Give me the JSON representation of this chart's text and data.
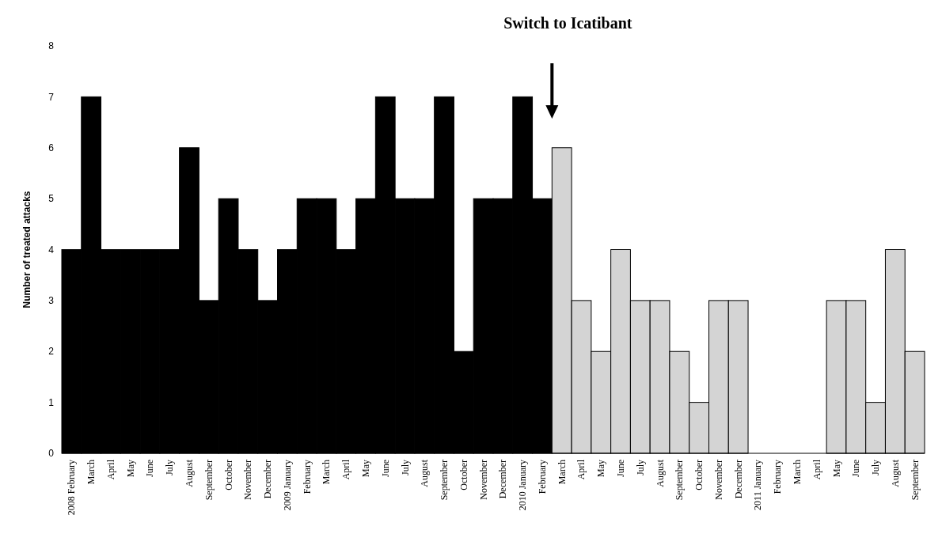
{
  "chart_data": {
    "type": "bar",
    "ylabel": "Number of treated attacks",
    "annotations": [
      "Switch to Icatibant"
    ],
    "categories": [
      "2008 February",
      "March",
      "April",
      "May",
      "June",
      "July",
      "August",
      "September",
      "October",
      "November",
      "December",
      "2009 January",
      "February",
      "March",
      "April",
      "May",
      "June",
      "July",
      "August",
      "September",
      "October",
      "November",
      "December",
      "2010 January",
      "February",
      "March",
      "April",
      "May",
      "June",
      "July",
      "August",
      "September",
      "October",
      "November",
      "December",
      "2011 January",
      "February",
      "March",
      "April",
      "May",
      "June",
      "July",
      "August",
      "September"
    ],
    "values": [
      4,
      7,
      4,
      4,
      4,
      4,
      6,
      3,
      5,
      4,
      3,
      4,
      5,
      5,
      4,
      5,
      7,
      5,
      5,
      7,
      2,
      5,
      5,
      7,
      5,
      6,
      3,
      2,
      4,
      3,
      3,
      2,
      1,
      3,
      3,
      0,
      0,
      0,
      0,
      3,
      3,
      1,
      4,
      2
    ],
    "colors": [
      "#000000",
      "#000000",
      "#000000",
      "#000000",
      "#000000",
      "#000000",
      "#000000",
      "#000000",
      "#000000",
      "#000000",
      "#000000",
      "#000000",
      "#000000",
      "#000000",
      "#000000",
      "#000000",
      "#000000",
      "#000000",
      "#000000",
      "#000000",
      "#000000",
      "#000000",
      "#000000",
      "#000000",
      "#000000",
      "#d4d4d4",
      "#d4d4d4",
      "#d4d4d4",
      "#d4d4d4",
      "#d4d4d4",
      "#d4d4d4",
      "#d4d4d4",
      "#d4d4d4",
      "#d4d4d4",
      "#d4d4d4",
      "#d4d4d4",
      "#d4d4d4",
      "#d4d4d4",
      "#d4d4d4",
      "#d4d4d4",
      "#d4d4d4",
      "#d4d4d4",
      "#d4d4d4",
      "#d4d4d4"
    ],
    "ylim": [
      0,
      8
    ],
    "yticks": [
      0,
      1,
      2,
      3,
      4,
      5,
      6,
      7,
      8
    ],
    "grid": false
  }
}
